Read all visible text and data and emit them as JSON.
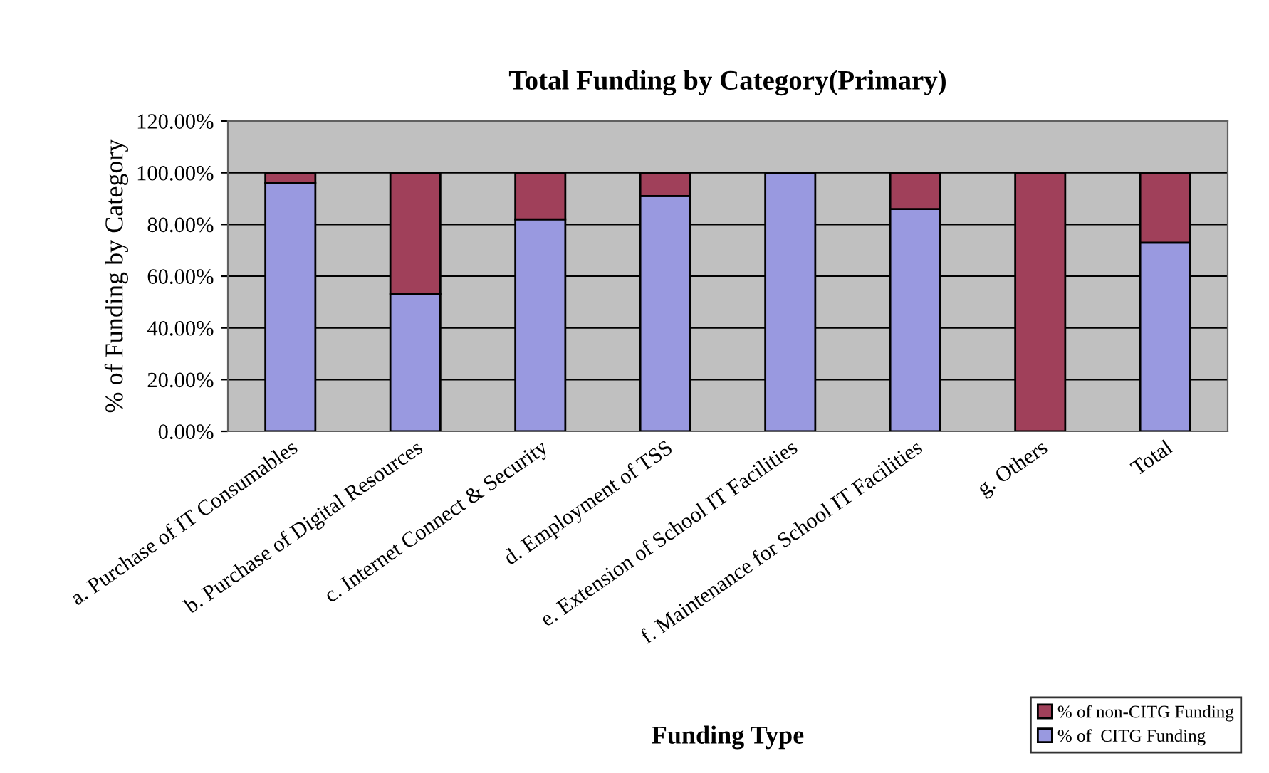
{
  "chart_data": {
    "type": "bar",
    "title": "Total Funding by Category(Primary)",
    "xlabel": "Funding Type",
    "ylabel": "% of Funding by Category",
    "categories": [
      "a. Purchase of IT Consumables",
      "b. Purchase of Digital Resources",
      "c. Internet Connect & Security",
      "d. Employment of TSS",
      "e. Extension of School IT Facilities",
      "f. Maintenance for School IT Facilities",
      "g. Others",
      "Total"
    ],
    "stacked": true,
    "series": [
      {
        "name": "% of  CITG Funding",
        "color": "#9999e0",
        "values": [
          96,
          53,
          82,
          91,
          100,
          86,
          0,
          73
        ]
      },
      {
        "name": "% of non-CITG Funding",
        "color": "#a0405a",
        "values": [
          4,
          47,
          18,
          9,
          null,
          14,
          100,
          27
        ]
      }
    ],
    "ylim": [
      0,
      120
    ],
    "yticks": [
      {
        "value": 0,
        "label": "0.00%"
      },
      {
        "value": 20,
        "label": "20.00%"
      },
      {
        "value": 40,
        "label": "40.00%"
      },
      {
        "value": 60,
        "label": "60.00%"
      },
      {
        "value": 80,
        "label": "80.00%"
      },
      {
        "value": 100,
        "label": "100.00%"
      },
      {
        "value": 120,
        "label": "120.00%"
      }
    ],
    "grid": "y",
    "legend": "bottom right"
  }
}
